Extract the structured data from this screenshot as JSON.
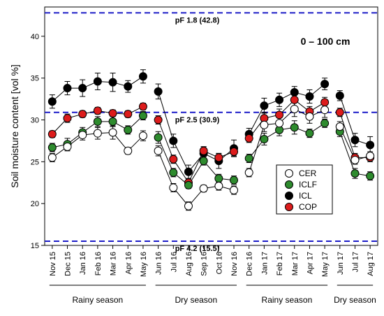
{
  "chart_data": {
    "type": "line",
    "ylabel": "Soil moisture content [vol %]",
    "xlabel": "",
    "ylim": [
      15,
      43.5
    ],
    "yticks": [
      15,
      20,
      25,
      30,
      35,
      40
    ],
    "categories": [
      "Nov 15",
      "Dec 15",
      "Jan 16",
      "Feb 16",
      "Mar 16",
      "Apr 16",
      "May 16",
      "Jun 16",
      "Jul 16",
      "Aug 16",
      "Sep 16",
      "Oct 16",
      "Nov 16",
      "Dec 16",
      "Jan 17",
      "Feb 17",
      "Mar 17",
      "Apr 17",
      "May 17",
      "Jun 17",
      "Jul 17",
      "Aug 17"
    ],
    "depth_label": "0 – 100 cm",
    "reference_lines": [
      {
        "label": "pF 1.8 (42.8)",
        "value": 42.8
      },
      {
        "label": "pF 2.5 (30.9)",
        "value": 30.9
      },
      {
        "label": "pF 4.2 (15.5)",
        "value": 15.5
      }
    ],
    "legend": {
      "placement": "right",
      "entries": [
        "CER",
        "ICLF",
        "ICL",
        "COP"
      ]
    },
    "colors": {
      "CER": "#ffffff",
      "ICLF": "#2e8b2e",
      "ICL": "#000000",
      "COP": "#dd1c1c",
      "reference": "#1c1cc8"
    },
    "series": [
      {
        "name": "CER",
        "segments": [
          [
            0,
            6
          ],
          [
            7,
            12
          ],
          [
            13,
            18
          ],
          [
            19,
            21
          ]
        ],
        "values": [
          25.5,
          26.8,
          28.2,
          28.4,
          28.5,
          26.3,
          28.1,
          26.3,
          21.9,
          19.7,
          21.8,
          22.1,
          21.6,
          23.7,
          29.4,
          29.6,
          31.3,
          30.4,
          31.2,
          29.2,
          25.2,
          25.7
        ],
        "err": [
          0.5,
          0.5,
          0.6,
          0.7,
          0.8,
          0.4,
          0.6,
          0.6,
          0.5,
          0.5,
          0.4,
          0.5,
          0.5,
          0.5,
          0.8,
          0.8,
          0.9,
          0.8,
          0.9,
          0.6,
          0.5,
          0.5
        ]
      },
      {
        "name": "ICLF",
        "segments": [
          [
            0,
            6
          ],
          [
            7,
            12
          ],
          [
            13,
            18
          ],
          [
            19,
            21
          ]
        ],
        "values": [
          26.7,
          27.1,
          28.5,
          29.8,
          29.8,
          28.8,
          30.5,
          27.9,
          23.7,
          22.2,
          25.1,
          23.0,
          22.8,
          25.4,
          27.7,
          28.8,
          29.1,
          28.4,
          29.6,
          28.6,
          23.6,
          23.3
        ],
        "err": [
          0.5,
          0.7,
          0.6,
          0.6,
          0.6,
          0.5,
          0.5,
          0.7,
          0.5,
          0.4,
          0.5,
          0.5,
          0.5,
          0.5,
          0.7,
          0.7,
          0.8,
          0.5,
          0.5,
          0.6,
          0.6,
          0.5
        ]
      },
      {
        "name": "ICL",
        "segments": [
          [
            0,
            6
          ],
          [
            7,
            12
          ],
          [
            13,
            18
          ],
          [
            19,
            21
          ]
        ],
        "values": [
          32.2,
          33.8,
          33.8,
          34.6,
          34.5,
          34.0,
          35.2,
          33.4,
          27.5,
          23.8,
          26.0,
          25.1,
          26.6,
          28.3,
          31.7,
          32.4,
          33.3,
          32.8,
          34.3,
          32.9,
          27.6,
          27.0
        ],
        "err": [
          0.8,
          0.8,
          1.0,
          1.0,
          1.1,
          0.7,
          0.8,
          0.9,
          0.8,
          0.8,
          0.8,
          0.9,
          1.0,
          0.7,
          0.9,
          0.8,
          0.7,
          0.8,
          0.7,
          0.6,
          0.8,
          1.0
        ]
      },
      {
        "name": "COP",
        "segments": [
          [
            0,
            6
          ],
          [
            7,
            12
          ],
          [
            13,
            18
          ],
          [
            19,
            21
          ]
        ],
        "values": [
          28.3,
          30.2,
          30.7,
          31.1,
          30.8,
          30.7,
          31.6,
          30.0,
          25.3,
          22.5,
          26.3,
          25.5,
          26.2,
          27.8,
          30.2,
          30.6,
          32.4,
          31.0,
          32.1,
          30.9,
          25.5,
          25.5
        ],
        "err": [
          0.4,
          0.5,
          0.4,
          0.4,
          0.4,
          0.4,
          0.4,
          0.5,
          0.5,
          0.5,
          0.5,
          0.5,
          0.5,
          0.5,
          0.7,
          0.7,
          0.8,
          0.6,
          0.6,
          0.5,
          0.5,
          0.5
        ]
      }
    ],
    "season_groups": [
      {
        "label": "Rainy season",
        "start": 0,
        "end": 6
      },
      {
        "label": "Dry season",
        "start": 7,
        "end": 12
      },
      {
        "label": "Rainy season",
        "start": 13,
        "end": 18
      },
      {
        "label": "Dry season",
        "start": 19,
        "end": 21
      }
    ]
  }
}
